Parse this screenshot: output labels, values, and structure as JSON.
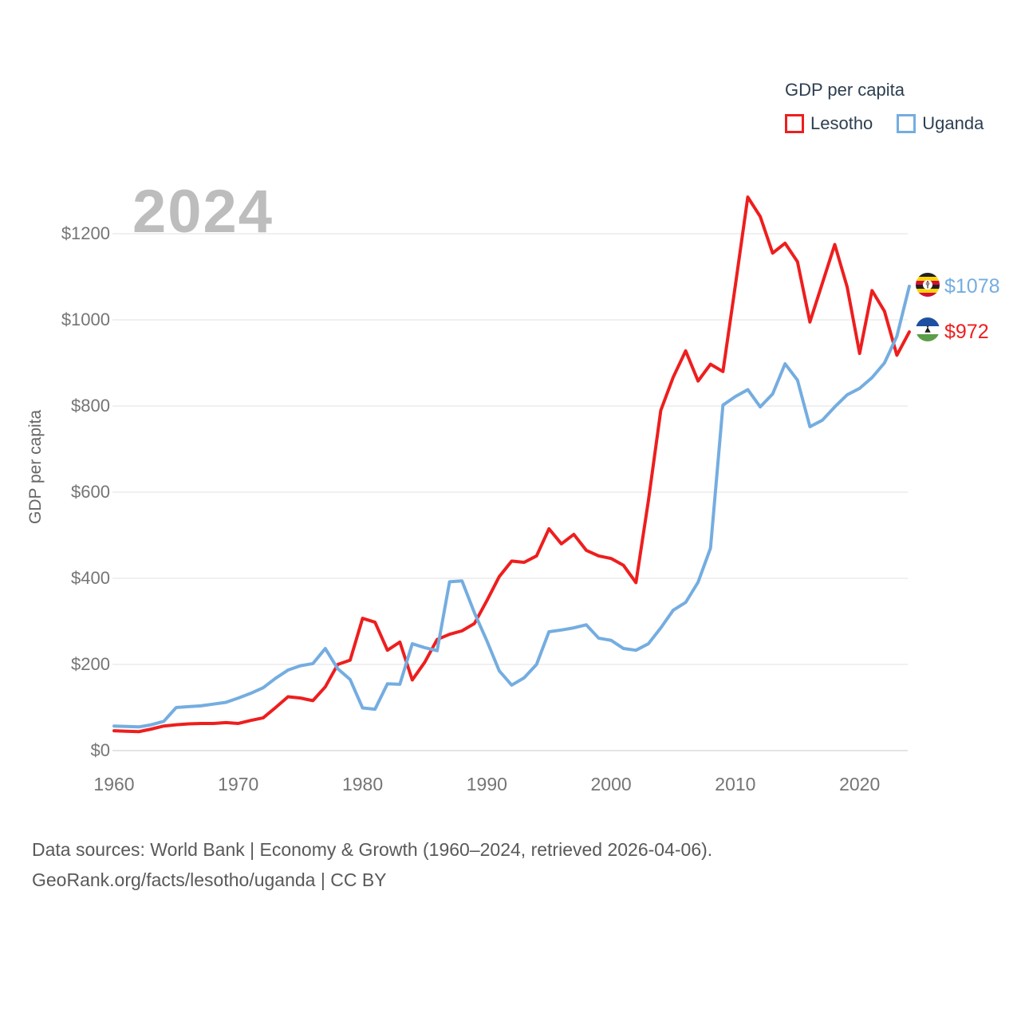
{
  "watermark": "2024",
  "legend": {
    "title": "GDP per capita",
    "series": [
      {
        "label": "Lesotho",
        "color": "#ee1e1e"
      },
      {
        "label": "Uganda",
        "color": "#74ade0"
      }
    ]
  },
  "chart_data": {
    "type": "line",
    "title": "GDP per capita",
    "xlabel": "",
    "ylabel": "GDP per capita",
    "xlim": [
      1960,
      2024
    ],
    "ylim": [
      0,
      1300
    ],
    "grid": "horizontal",
    "legend_position": "top-right",
    "xtick_values": [
      1960,
      1970,
      1980,
      1990,
      2000,
      2010,
      2020
    ],
    "xtick_labels": [
      "1960",
      "1970",
      "1980",
      "1990",
      "2000",
      "2010",
      "2020"
    ],
    "ytick_values": [
      0,
      200,
      400,
      600,
      800,
      1000,
      1200
    ],
    "ytick_labels": [
      "$0",
      "$200",
      "$400",
      "$600",
      "$800",
      "$1000",
      "$1200"
    ],
    "x": [
      1960,
      1961,
      1962,
      1963,
      1964,
      1965,
      1966,
      1967,
      1968,
      1969,
      1970,
      1971,
      1972,
      1973,
      1974,
      1975,
      1976,
      1977,
      1978,
      1979,
      1980,
      1981,
      1982,
      1983,
      1984,
      1985,
      1986,
      1987,
      1988,
      1989,
      1990,
      1991,
      1992,
      1993,
      1994,
      1995,
      1996,
      1997,
      1998,
      1999,
      2000,
      2001,
      2002,
      2003,
      2004,
      2005,
      2006,
      2007,
      2008,
      2009,
      2010,
      2011,
      2012,
      2013,
      2014,
      2015,
      2016,
      2017,
      2018,
      2019,
      2020,
      2021,
      2022,
      2023,
      2024
    ],
    "series": [
      {
        "name": "Lesotho",
        "color": "#ee1e1e",
        "end_label": "$972",
        "end_value": 972,
        "flag": "lesotho-flag",
        "values": [
          46,
          45,
          44,
          50,
          57,
          60,
          62,
          63,
          63,
          65,
          63,
          70,
          76,
          100,
          125,
          122,
          116,
          148,
          200,
          210,
          307,
          298,
          233,
          252,
          164,
          205,
          258,
          270,
          278,
          295,
          348,
          404,
          440,
          437,
          452,
          515,
          480,
          502,
          465,
          452,
          446,
          430,
          390,
          580,
          790,
          867,
          928,
          858,
          897,
          880,
          1080,
          1285,
          1240,
          1155,
          1178,
          1135,
          995,
          1085,
          1175,
          1076,
          922,
          1068,
          1020,
          918,
          972
        ]
      },
      {
        "name": "Uganda",
        "color": "#74ade0",
        "end_label": "$1078",
        "end_value": 1078,
        "flag": "uganda-flag",
        "values": [
          57,
          56,
          55,
          60,
          68,
          100,
          102,
          104,
          108,
          112,
          122,
          133,
          146,
          168,
          187,
          197,
          202,
          237,
          190,
          165,
          99,
          96,
          155,
          154,
          248,
          239,
          232,
          392,
          394,
          320,
          255,
          185,
          152,
          169,
          200,
          276,
          280,
          285,
          292,
          261,
          256,
          237,
          233,
          248,
          285,
          326,
          344,
          391,
          470,
          802,
          822,
          838,
          798,
          828,
          898,
          860,
          752,
          767,
          798,
          826,
          841,
          866,
          900,
          962,
          1078
        ]
      }
    ]
  },
  "footer": {
    "line1": "Data sources: World Bank | Economy & Growth (1960–2024, retrieved 2026-04-06).",
    "line2": "GeoRank.org/facts/lesotho/uganda | CC BY"
  }
}
